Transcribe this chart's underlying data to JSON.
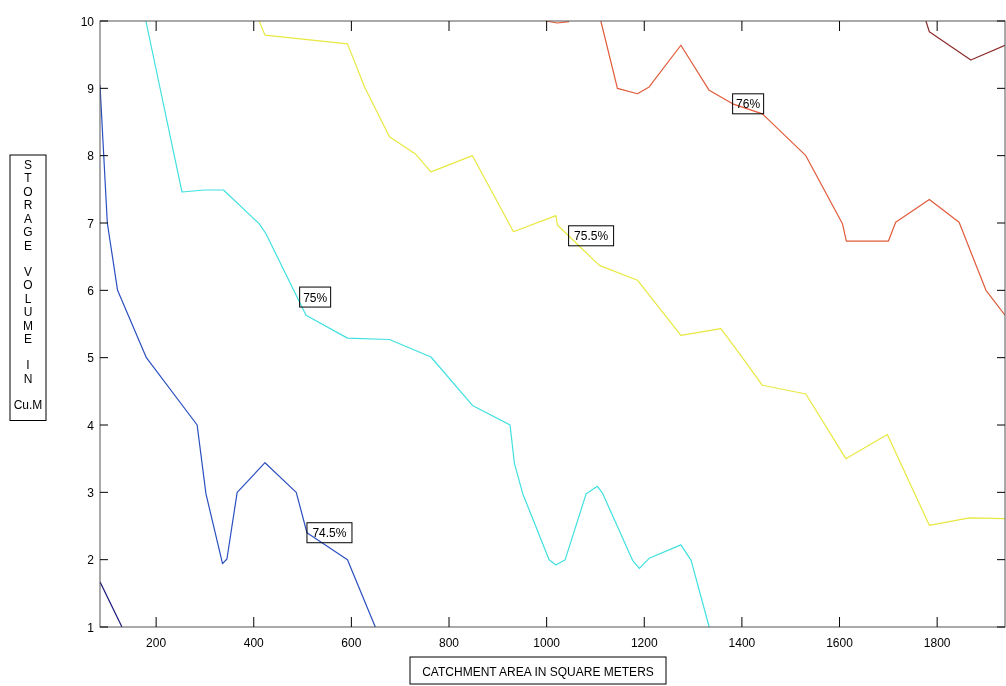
{
  "chart_data": {
    "type": "line",
    "xlabel": "CATCHMENT AREA IN SQUARE METERS",
    "ylabel": "STORAGE VOLUME IN Cu.M",
    "xlim": [
      85,
      1939
    ],
    "ylim": [
      1,
      10
    ],
    "xticks": [
      200,
      400,
      600,
      800,
      1000,
      1200,
      1400,
      1600,
      1800
    ],
    "yticks": [
      1,
      2,
      3,
      4,
      5,
      6,
      7,
      8,
      9,
      10
    ],
    "grid": false,
    "marker": "none",
    "line_style": "solid",
    "series": [
      {
        "color": "#1a1a7a",
        "x": [
          85,
          130
        ],
        "values": [
          1.67,
          1
        ]
      },
      {
        "color": "#2a4fc0",
        "x": [
          85,
          100,
          121,
          180,
          284,
          302,
          336,
          345,
          366,
          423,
          487,
          509,
          592,
          649
        ],
        "values": [
          9.05,
          7.0,
          6.0,
          5.0,
          4.0,
          2.98,
          1.94,
          2.01,
          3.0,
          3.44,
          3.0,
          2.4,
          2.0,
          1.0
        ]
      },
      {
        "color": "#40e0e0",
        "x": [
          179,
          253,
          299,
          338,
          411,
          425,
          507,
          592,
          678,
          763,
          848,
          925,
          934,
          951,
          1005,
          1019,
          1038,
          1081,
          1104,
          1115,
          1176,
          1190,
          1210,
          1275,
          1296,
          1333
        ],
        "values": [
          10,
          7.46,
          7.49,
          7.49,
          6.99,
          6.84,
          5.63,
          5.29,
          5.27,
          5.01,
          4.29,
          4.0,
          3.43,
          2.98,
          2.0,
          1.92,
          2.0,
          2.98,
          3.09,
          2.98,
          1.99,
          1.87,
          2.02,
          2.22,
          1.99,
          1.0
        ]
      },
      {
        "color": "#e8e840",
        "x": [
          411,
          423,
          592,
          627,
          678,
          732,
          763,
          848,
          932,
          1019,
          1022,
          1108,
          1186,
          1275,
          1357,
          1398,
          1442,
          1531,
          1613,
          1698,
          1784,
          1866,
          1939
        ],
        "values": [
          10,
          9.79,
          9.66,
          9.02,
          8.28,
          8.02,
          7.76,
          8.0,
          6.87,
          7.11,
          6.97,
          6.37,
          6.15,
          5.33,
          5.43,
          5.03,
          4.59,
          4.46,
          3.5,
          3.86,
          2.51,
          2.62,
          2.61
        ]
      },
      {
        "color": "#e05a3a",
        "x": [
          999,
          1022,
          1046,
          1078,
          1111,
          1145,
          1186,
          1210,
          1275,
          1333,
          1381,
          1442,
          1531,
          1606,
          1614,
          1700,
          1715,
          1784,
          1845,
          1900,
          1939
        ],
        "values": [
          10,
          9.97,
          9.99,
          null,
          10,
          9.0,
          8.92,
          9.02,
          9.64,
          8.97,
          8.77,
          8.62,
          8.0,
          6.99,
          6.73,
          6.73,
          7.01,
          7.35,
          7.01,
          6.0,
          5.63
        ]
      },
      {
        "color": "#8b2a2a",
        "x": [
          1777,
          1784,
          1869,
          1939
        ],
        "values": [
          10,
          9.84,
          9.42,
          9.64
        ]
      }
    ],
    "annotations": [
      {
        "text": "74.5%",
        "x": 509,
        "y": 2.4
      },
      {
        "text": "75%",
        "x": 494,
        "y": 5.9
      },
      {
        "text": "75.5%",
        "x": 1045,
        "y": 6.81
      },
      {
        "text": "76%",
        "x": 1381,
        "y": 8.77
      }
    ]
  }
}
